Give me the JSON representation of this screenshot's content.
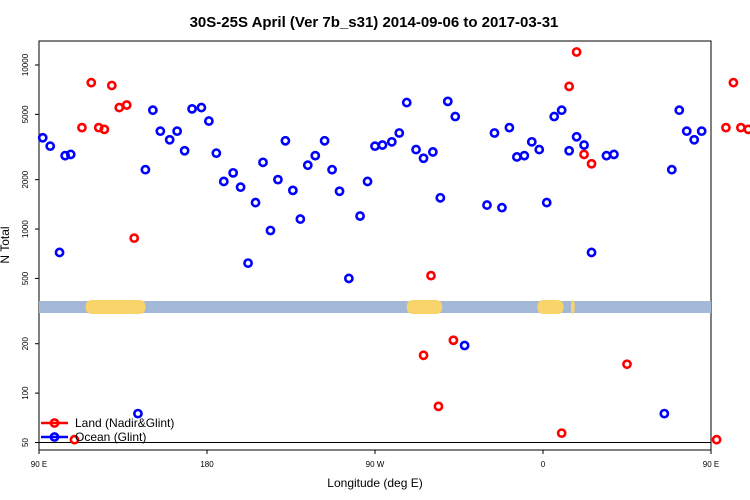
{
  "chart_data": {
    "type": "scatter",
    "title": "30S-25S April (Ver 7b_s31)   2014-09-06 to 2017-03-31",
    "xlabel": "Longitude (deg E)",
    "ylabel": "N Total",
    "xlim": [
      90,
      450
    ],
    "ylim": [
      45,
      14000
    ],
    "yscale": "log",
    "x_ticks": [
      {
        "value": 90,
        "label": "90 E"
      },
      {
        "value": 180,
        "label": "180"
      },
      {
        "value": 270,
        "label": "90 W"
      },
      {
        "value": 360,
        "label": "0"
      },
      {
        "value": 450,
        "label": "90 E"
      },
      {
        "value": 540,
        "label": "180"
      }
    ],
    "y_ticks": [
      {
        "value": 50,
        "label": "50"
      },
      {
        "value": 100,
        "label": "100"
      },
      {
        "value": 200,
        "label": "200"
      },
      {
        "value": 500,
        "label": "500"
      },
      {
        "value": 1000,
        "label": "1000"
      },
      {
        "value": 2000,
        "label": "2000"
      },
      {
        "value": 5000,
        "label": "5000"
      },
      {
        "value": 10000,
        "label": "10000"
      }
    ],
    "reference_line": 50,
    "map_band": {
      "ocean_color": "#a3b8d6",
      "land_color": "#f8d46a",
      "land_ranges": [
        [
          115,
          147
        ],
        [
          287,
          306
        ],
        [
          357,
          371
        ],
        [
          375,
          377
        ],
        [
          485,
          518
        ]
      ]
    },
    "legend": {
      "position": "bottom-left",
      "entries": [
        {
          "label": "Land (Nadir&Glint)",
          "color": "#ff0000"
        },
        {
          "label": "Ocean (Glint)",
          "color": "#0000ff"
        }
      ]
    },
    "series": [
      {
        "name": "Land (Nadir&Glint)",
        "color": "#ff0000",
        "points": [
          [
            109,
            52
          ],
          [
            113,
            4150
          ],
          [
            118,
            7800
          ],
          [
            122,
            4150
          ],
          [
            125,
            4050
          ],
          [
            129,
            7500
          ],
          [
            133,
            5500
          ],
          [
            137,
            5700
          ],
          [
            141,
            880
          ],
          [
            296,
            170
          ],
          [
            300,
            520
          ],
          [
            304,
            83
          ],
          [
            312,
            210
          ],
          [
            370,
            57
          ],
          [
            374,
            7400
          ],
          [
            378,
            12000
          ],
          [
            382,
            2850
          ],
          [
            386,
            2500
          ],
          [
            405,
            150
          ],
          [
            453,
            52
          ],
          [
            458,
            4150
          ],
          [
            462,
            7800
          ],
          [
            466,
            4150
          ],
          [
            470,
            4050
          ],
          [
            474,
            7500
          ],
          [
            478,
            5500
          ],
          [
            482,
            5700
          ],
          [
            486,
            880
          ]
        ]
      },
      {
        "name": "Ocean (Glint)",
        "color": "#0000ff",
        "points": [
          [
            92,
            3600
          ],
          [
            96,
            3200
          ],
          [
            101,
            720
          ],
          [
            104,
            2800
          ],
          [
            107,
            2850
          ],
          [
            143,
            75
          ],
          [
            147,
            2300
          ],
          [
            151,
            5300
          ],
          [
            155,
            3950
          ],
          [
            160,
            3500
          ],
          [
            164,
            3950
          ],
          [
            168,
            3000
          ],
          [
            172,
            5400
          ],
          [
            177,
            5500
          ],
          [
            181,
            4550
          ],
          [
            185,
            2900
          ],
          [
            189,
            1950
          ],
          [
            194,
            2200
          ],
          [
            198,
            1800
          ],
          [
            202,
            620
          ],
          [
            206,
            1450
          ],
          [
            210,
            2550
          ],
          [
            214,
            980
          ],
          [
            218,
            2000
          ],
          [
            222,
            3450
          ],
          [
            226,
            1720
          ],
          [
            230,
            1150
          ],
          [
            234,
            2450
          ],
          [
            238,
            2800
          ],
          [
            243,
            3450
          ],
          [
            247,
            2300
          ],
          [
            251,
            1700
          ],
          [
            256,
            500
          ],
          [
            262,
            1200
          ],
          [
            266,
            1950
          ],
          [
            270,
            3200
          ],
          [
            274,
            3250
          ],
          [
            279,
            3400
          ],
          [
            283,
            3850
          ],
          [
            287,
            5900
          ],
          [
            292,
            3050
          ],
          [
            296,
            2700
          ],
          [
            301,
            2950
          ],
          [
            305,
            1550
          ],
          [
            309,
            6000
          ],
          [
            313,
            4850
          ],
          [
            318,
            195
          ],
          [
            330,
            1400
          ],
          [
            334,
            3850
          ],
          [
            338,
            1350
          ],
          [
            342,
            4150
          ],
          [
            346,
            2750
          ],
          [
            350,
            2800
          ],
          [
            354,
            3400
          ],
          [
            358,
            3050
          ],
          [
            362,
            1450
          ],
          [
            366,
            4850
          ],
          [
            370,
            5300
          ],
          [
            374,
            3000
          ],
          [
            378,
            3650
          ],
          [
            382,
            3250
          ],
          [
            386,
            720
          ],
          [
            394,
            2800
          ],
          [
            398,
            2850
          ],
          [
            425,
            75
          ],
          [
            429,
            2300
          ],
          [
            433,
            5300
          ],
          [
            437,
            3950
          ],
          [
            441,
            3500
          ],
          [
            445,
            3950
          ]
        ]
      }
    ]
  }
}
